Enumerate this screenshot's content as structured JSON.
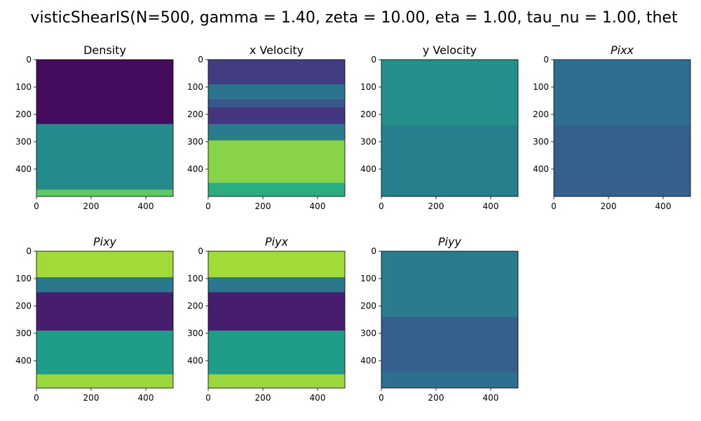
{
  "figure": {
    "suptitle": "visticShearIS(N=500, gamma = 1.40, zeta = 10.00, eta = 1.00, tau_nu = 1.00, thet"
  },
  "chart_data": [
    {
      "type": "heatmap",
      "title": "Density",
      "title_italic": false,
      "colormap": "viridis",
      "xlim": [
        0,
        500
      ],
      "ylim": [
        500,
        0
      ],
      "xticks": [
        0,
        200,
        400
      ],
      "yticks": [
        0,
        100,
        200,
        300,
        400
      ],
      "bands": [
        {
          "y": [
            0,
            235
          ],
          "level": 0.03
        },
        {
          "y": [
            235,
            475
          ],
          "level": 0.48
        },
        {
          "y": [
            475,
            500
          ],
          "level": 0.75
        }
      ]
    },
    {
      "type": "heatmap",
      "title": "x Velocity",
      "title_italic": false,
      "colormap": "viridis",
      "xlim": [
        0,
        500
      ],
      "ylim": [
        500,
        0
      ],
      "xticks": [
        0,
        200,
        400
      ],
      "yticks": [
        0,
        100,
        200,
        300,
        400
      ],
      "bands": [
        {
          "y": [
            0,
            90
          ],
          "level": 0.18
        },
        {
          "y": [
            90,
            145
          ],
          "level": 0.38
        },
        {
          "y": [
            145,
            175
          ],
          "level": 0.27
        },
        {
          "y": [
            175,
            235
          ],
          "level": 0.15
        },
        {
          "y": [
            235,
            295
          ],
          "level": 0.42
        },
        {
          "y": [
            295,
            450
          ],
          "level": 0.82
        },
        {
          "y": [
            450,
            500
          ],
          "level": 0.62
        }
      ]
    },
    {
      "type": "heatmap",
      "title": "y Velocity",
      "title_italic": false,
      "colormap": "viridis",
      "xlim": [
        0,
        500
      ],
      "ylim": [
        500,
        0
      ],
      "xticks": [
        0,
        200,
        400
      ],
      "yticks": [
        0,
        100,
        200,
        300,
        400
      ],
      "bands": [
        {
          "y": [
            0,
            240
          ],
          "level": 0.5
        },
        {
          "y": [
            240,
            500
          ],
          "level": 0.43
        }
      ]
    },
    {
      "type": "heatmap",
      "title": "Pixx",
      "title_italic": true,
      "colormap": "viridis",
      "xlim": [
        0,
        500
      ],
      "ylim": [
        500,
        0
      ],
      "xticks": [
        0,
        200,
        400
      ],
      "yticks": [
        0,
        100,
        200,
        300,
        400
      ],
      "bands": [
        {
          "y": [
            0,
            240
          ],
          "level": 0.36
        },
        {
          "y": [
            240,
            500
          ],
          "level": 0.3
        }
      ]
    },
    {
      "type": "heatmap",
      "title": "Pixy",
      "title_italic": true,
      "colormap": "viridis",
      "xlim": [
        0,
        500
      ],
      "ylim": [
        500,
        0
      ],
      "xticks": [
        0,
        200,
        400
      ],
      "yticks": [
        0,
        100,
        200,
        300,
        400
      ],
      "bands": [
        {
          "y": [
            0,
            95
          ],
          "level": 0.86
        },
        {
          "y": [
            95,
            150
          ],
          "level": 0.4
        },
        {
          "y": [
            150,
            290
          ],
          "level": 0.08
        },
        {
          "y": [
            290,
            450
          ],
          "level": 0.55
        },
        {
          "y": [
            450,
            500
          ],
          "level": 0.85
        }
      ]
    },
    {
      "type": "heatmap",
      "title": "Piyx",
      "title_italic": true,
      "colormap": "viridis",
      "xlim": [
        0,
        500
      ],
      "ylim": [
        500,
        0
      ],
      "xticks": [
        0,
        200,
        400
      ],
      "yticks": [
        0,
        100,
        200,
        300,
        400
      ],
      "bands": [
        {
          "y": [
            0,
            95
          ],
          "level": 0.86
        },
        {
          "y": [
            95,
            150
          ],
          "level": 0.4
        },
        {
          "y": [
            150,
            290
          ],
          "level": 0.08
        },
        {
          "y": [
            290,
            450
          ],
          "level": 0.55
        },
        {
          "y": [
            450,
            500
          ],
          "level": 0.85
        }
      ]
    },
    {
      "type": "heatmap",
      "title": "Piyy",
      "title_italic": true,
      "colormap": "viridis",
      "xlim": [
        0,
        500
      ],
      "ylim": [
        500,
        0
      ],
      "xticks": [
        0,
        200,
        400
      ],
      "yticks": [
        0,
        100,
        200,
        300,
        400
      ],
      "bands": [
        {
          "y": [
            0,
            240
          ],
          "level": 0.42
        },
        {
          "y": [
            240,
            440
          ],
          "level": 0.3
        },
        {
          "y": [
            440,
            500
          ],
          "level": 0.36
        }
      ]
    }
  ]
}
